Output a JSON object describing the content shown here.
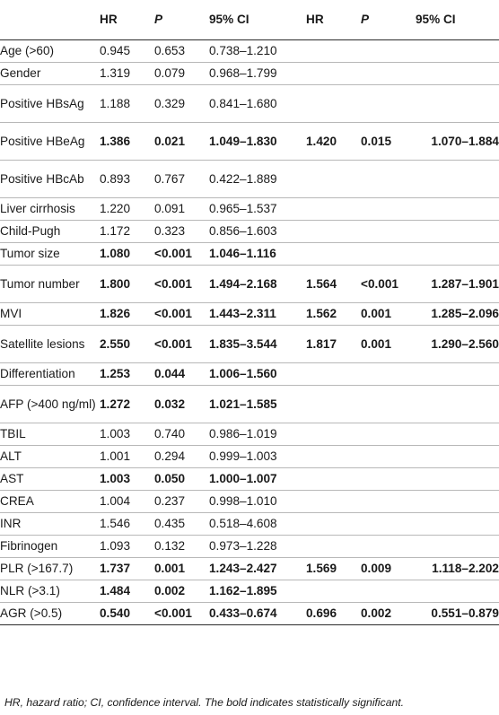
{
  "table": {
    "headers": [
      "",
      "HR",
      "P",
      "95% CI",
      "HR",
      "P",
      "95% CI"
    ],
    "rows": [
      {
        "label": "Age (>60)",
        "hr": "0.945",
        "p": "0.653",
        "ci": "0.738–1.210",
        "hr2": "",
        "p2": "",
        "ci2": "",
        "bold": false
      },
      {
        "label": "Gender",
        "hr": "1.319",
        "p": "0.079",
        "ci": "0.968–1.799",
        "hr2": "",
        "p2": "",
        "ci2": "",
        "bold": false
      },
      {
        "label": "Positive HBsAg",
        "hr": "1.188",
        "p": "0.329",
        "ci": "0.841–1.680",
        "hr2": "",
        "p2": "",
        "ci2": "",
        "bold": false
      },
      {
        "label": "Positive HBeAg",
        "hr": "1.386",
        "p": "0.021",
        "ci": "1.049–1.830",
        "hr2": "1.420",
        "p2": "0.015",
        "ci2": "1.070–1.884",
        "bold": true
      },
      {
        "label": "Positive HBcAb",
        "hr": "0.893",
        "p": "0.767",
        "ci": "0.422–1.889",
        "hr2": "",
        "p2": "",
        "ci2": "",
        "bold": false
      },
      {
        "label": "Liver cirrhosis",
        "hr": "1.220",
        "p": "0.091",
        "ci": "0.965–1.537",
        "hr2": "",
        "p2": "",
        "ci2": "",
        "bold": false
      },
      {
        "label": "Child-Pugh",
        "hr": "1.172",
        "p": "0.323",
        "ci": "0.856–1.603",
        "hr2": "",
        "p2": "",
        "ci2": "",
        "bold": false
      },
      {
        "label": "Tumor size",
        "hr": "1.080",
        "p": "<0.001",
        "ci": "1.046–1.116",
        "hr2": "",
        "p2": "",
        "ci2": "",
        "bold": true
      },
      {
        "label": "Tumor number",
        "hr": "1.800",
        "p": "<0.001",
        "ci": "1.494–2.168",
        "hr2": "1.564",
        "p2": "<0.001",
        "ci2": "1.287–1.901",
        "bold": true
      },
      {
        "label": "MVI",
        "hr": "1.826",
        "p": "<0.001",
        "ci": "1.443–2.311",
        "hr2": "1.562",
        "p2": "0.001",
        "ci2": "1.285–2.096",
        "bold": true
      },
      {
        "label": "Satellite lesions",
        "hr": "2.550",
        "p": "<0.001",
        "ci": "1.835–3.544",
        "hr2": "1.817",
        "p2": "0.001",
        "ci2": "1.290–2.560",
        "bold": true
      },
      {
        "label": "Differentiation",
        "hr": "1.253",
        "p": "0.044",
        "ci": "1.006–1.560",
        "hr2": "",
        "p2": "",
        "ci2": "",
        "bold": true
      },
      {
        "label": "AFP (>400 ng/ml)",
        "hr": "1.272",
        "p": "0.032",
        "ci": "1.021–1.585",
        "hr2": "",
        "p2": "",
        "ci2": "",
        "bold": true
      },
      {
        "label": "TBIL",
        "hr": "1.003",
        "p": "0.740",
        "ci": "0.986–1.019",
        "hr2": "",
        "p2": "",
        "ci2": "",
        "bold": false
      },
      {
        "label": "ALT",
        "hr": "1.001",
        "p": "0.294",
        "ci": "0.999–1.003",
        "hr2": "",
        "p2": "",
        "ci2": "",
        "bold": false
      },
      {
        "label": "AST",
        "hr": "1.003",
        "p": "0.050",
        "ci": "1.000–1.007",
        "hr2": "",
        "p2": "",
        "ci2": "",
        "bold": true
      },
      {
        "label": "CREA",
        "hr": "1.004",
        "p": "0.237",
        "ci": "0.998–1.010",
        "hr2": "",
        "p2": "",
        "ci2": "",
        "bold": false
      },
      {
        "label": "INR",
        "hr": "1.546",
        "p": "0.435",
        "ci": "0.518–4.608",
        "hr2": "",
        "p2": "",
        "ci2": "",
        "bold": false
      },
      {
        "label": "Fibrinogen",
        "hr": "1.093",
        "p": "0.132",
        "ci": "0.973–1.228",
        "hr2": "",
        "p2": "",
        "ci2": "",
        "bold": false
      },
      {
        "label": "PLR (>167.7)",
        "hr": "1.737",
        "p": "0.001",
        "ci": "1.243–2.427",
        "hr2": "1.569",
        "p2": "0.009",
        "ci2": "1.118–2.202",
        "bold": true
      },
      {
        "label": "NLR (>3.1)",
        "hr": "1.484",
        "p": "0.002",
        "ci": "1.162–1.895",
        "hr2": "",
        "p2": "",
        "ci2": "",
        "bold": true
      },
      {
        "label": "AGR (>0.5)",
        "hr": "0.540",
        "p": "<0.001",
        "ci": "0.433–0.674",
        "hr2": "0.696",
        "p2": "0.002",
        "ci2": "0.551–0.879",
        "bold": true
      }
    ]
  },
  "footnote": "HR, hazard ratio; CI, confidence interval. The bold indicates statistically significant."
}
